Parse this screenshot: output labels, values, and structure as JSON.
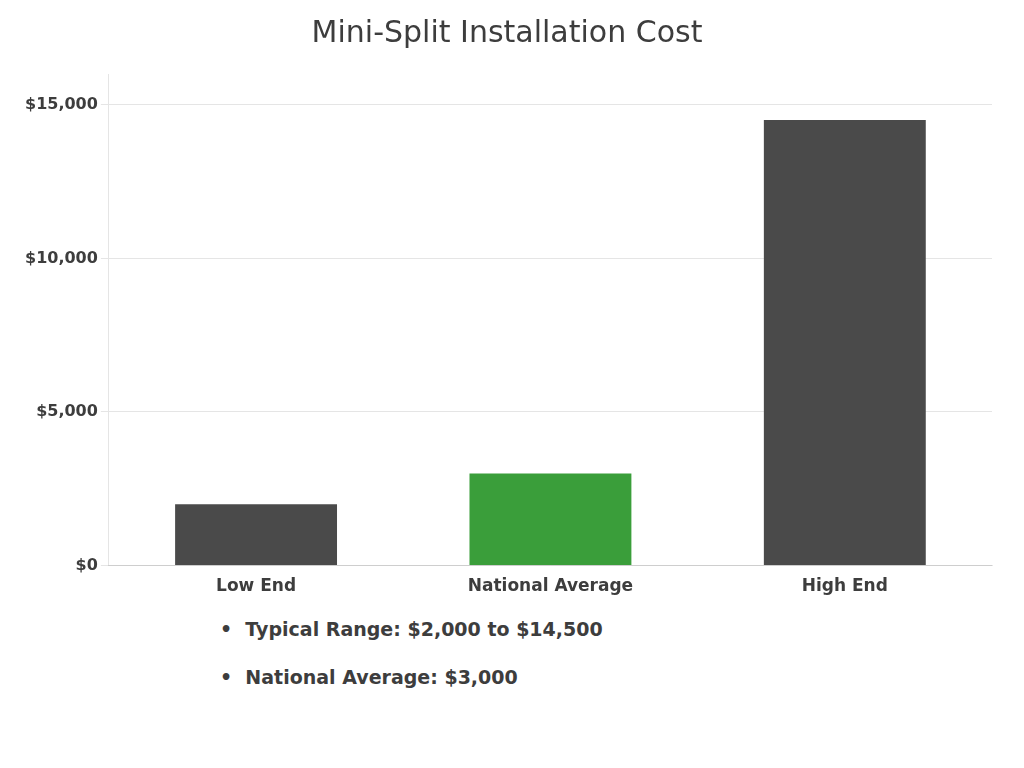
{
  "chart_data": {
    "type": "bar",
    "title": "Mini-Split Installation Cost",
    "categories": [
      "Low End",
      "National Average",
      "High End"
    ],
    "values": [
      2000,
      3000,
      14500
    ],
    "colors": [
      "#4a4a4a",
      "#3a9e3a",
      "#4a4a4a"
    ],
    "ylim": [
      0,
      16000
    ],
    "yticks": [
      {
        "value": 0,
        "label": "$0"
      },
      {
        "value": 5000,
        "label": "$5,000"
      },
      {
        "value": 10000,
        "label": "$10,000"
      },
      {
        "value": 15000,
        "label": "$15,000"
      }
    ],
    "grid": true,
    "annotations": [
      "•  Typical Range: $2,000 to $14,500",
      "•  National Average: $3,000"
    ]
  }
}
